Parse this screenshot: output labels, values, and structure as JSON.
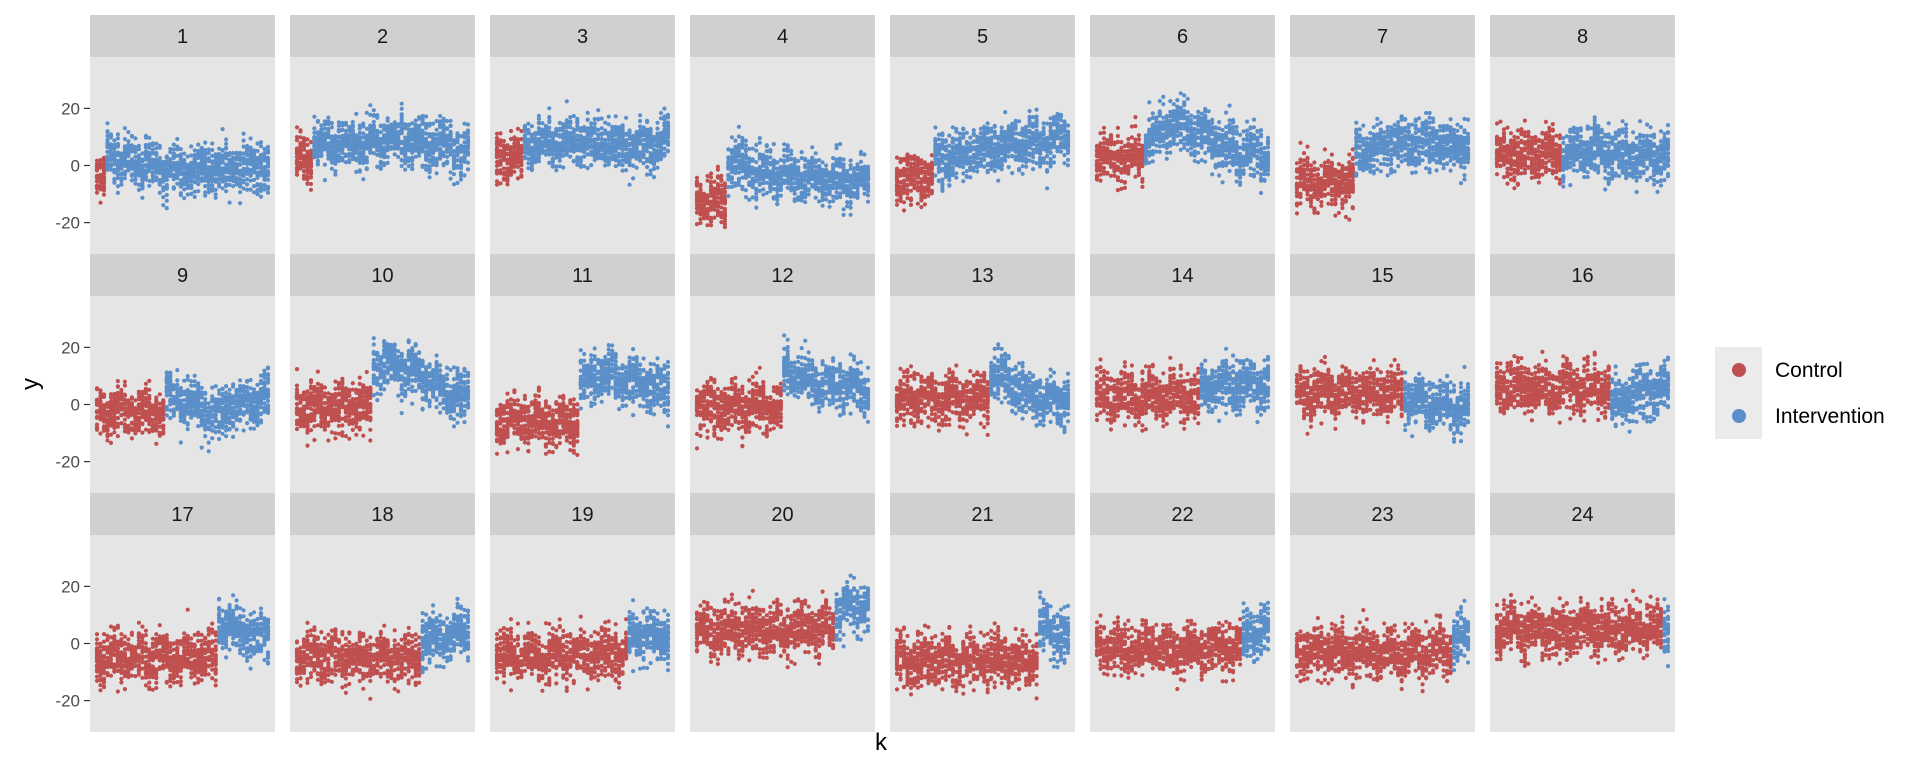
{
  "chart_data": {
    "type": "scatter",
    "facet_type": "wrap",
    "facets": [
      "1",
      "2",
      "3",
      "4",
      "5",
      "6",
      "7",
      "8",
      "9",
      "10",
      "11",
      "12",
      "13",
      "14",
      "15",
      "16",
      "17",
      "18",
      "19",
      "20",
      "21",
      "22",
      "23",
      "24"
    ],
    "ncol": 8,
    "nrow": 3,
    "xlabel": "k",
    "ylabel": "y",
    "ylim": [
      -31,
      38
    ],
    "yticks": [
      -20,
      0,
      20
    ],
    "ytick_labels": [
      "-20",
      "0",
      "20"
    ],
    "x_range_per_facet": [
      0,
      1
    ],
    "points_per_column": 22,
    "columns_per_facet": 50,
    "legend": {
      "position": "right",
      "entries": [
        {
          "label": "Control",
          "color": "#C0504F"
        },
        {
          "label": "Intervention",
          "color": "#5B8FC9"
        }
      ]
    },
    "panel_background": "#E5E5E5",
    "strip_background": "#D0D0D0",
    "grid": false,
    "series_by_facet": [
      {
        "facet": "1",
        "intervention_start": 0.05,
        "control_level": -5,
        "intervention_levels": [
          4,
          0,
          -2,
          -1,
          0
        ]
      },
      {
        "facet": "2",
        "intervention_start": 0.1,
        "control_level": 3,
        "intervention_levels": [
          7,
          7,
          9,
          8,
          6
        ]
      },
      {
        "facet": "3",
        "intervention_start": 0.15,
        "control_level": 2,
        "intervention_levels": [
          8,
          9,
          8,
          6,
          9
        ]
      },
      {
        "facet": "4",
        "intervention_start": 0.18,
        "control_level": -12,
        "intervention_levels": [
          2,
          -3,
          -4,
          -5,
          -5
        ]
      },
      {
        "facet": "5",
        "intervention_start": 0.22,
        "control_level": -4,
        "intervention_levels": [
          2,
          4,
          6,
          8,
          9
        ]
      },
      {
        "facet": "6",
        "intervention_start": 0.28,
        "control_level": 3,
        "intervention_levels": [
          8,
          15,
          10,
          5,
          4
        ]
      },
      {
        "facet": "7",
        "intervention_start": 0.33,
        "control_level": -6,
        "intervention_levels": [
          5,
          6,
          8,
          7,
          6
        ]
      },
      {
        "facet": "8",
        "intervention_start": 0.38,
        "control_level": 4,
        "intervention_levels": [
          3,
          5,
          4,
          3,
          3
        ]
      },
      {
        "facet": "9",
        "intervention_start": 0.4,
        "control_level": -3,
        "intervention_levels": [
          5,
          0,
          -3,
          0,
          3
        ]
      },
      {
        "facet": "10",
        "intervention_start": 0.44,
        "control_level": -1,
        "intervention_levels": [
          15,
          13,
          10,
          5,
          2
        ]
      },
      {
        "facet": "11",
        "intervention_start": 0.47,
        "control_level": -6,
        "intervention_levels": [
          8,
          10,
          9,
          7,
          5
        ]
      },
      {
        "facet": "12",
        "intervention_start": 0.5,
        "control_level": -1,
        "intervention_levels": [
          12,
          9,
          7,
          6,
          6
        ]
      },
      {
        "facet": "13",
        "intervention_start": 0.55,
        "control_level": 2,
        "intervention_levels": [
          10,
          8,
          4,
          1,
          2
        ]
      },
      {
        "facet": "14",
        "intervention_start": 0.6,
        "control_level": 3,
        "intervention_levels": [
          5,
          6,
          7,
          6,
          7
        ]
      },
      {
        "facet": "15",
        "intervention_start": 0.63,
        "control_level": 4,
        "intervention_levels": [
          2,
          1,
          0,
          -1,
          -2
        ]
      },
      {
        "facet": "16",
        "intervention_start": 0.66,
        "control_level": 6,
        "intervention_levels": [
          0,
          2,
          4,
          5,
          6
        ]
      },
      {
        "facet": "17",
        "intervention_start": 0.7,
        "control_level": -5,
        "intervention_levels": [
          8,
          6,
          4,
          3,
          2
        ]
      },
      {
        "facet": "18",
        "intervention_start": 0.72,
        "control_level": -5,
        "intervention_levels": [
          1,
          2,
          3,
          4,
          5
        ]
      },
      {
        "facet": "19",
        "intervention_start": 0.76,
        "control_level": -4,
        "intervention_levels": [
          2,
          3,
          3,
          2,
          2
        ]
      },
      {
        "facet": "20",
        "intervention_start": 0.8,
        "control_level": 5,
        "intervention_levels": [
          10,
          12,
          12,
          13,
          14
        ]
      },
      {
        "facet": "21",
        "intervention_start": 0.82,
        "control_level": -6,
        "intervention_levels": [
          6,
          5,
          4,
          3,
          2
        ]
      },
      {
        "facet": "22",
        "intervention_start": 0.85,
        "control_level": -2,
        "intervention_levels": [
          4,
          4,
          4,
          4,
          4
        ]
      },
      {
        "facet": "23",
        "intervention_start": 0.9,
        "control_level": -3,
        "intervention_levels": [
          2,
          2,
          2,
          2,
          2
        ]
      },
      {
        "facet": "24",
        "intervention_start": 0.96,
        "control_level": 5,
        "intervention_levels": [
          5,
          5,
          5,
          5,
          5
        ]
      }
    ]
  }
}
